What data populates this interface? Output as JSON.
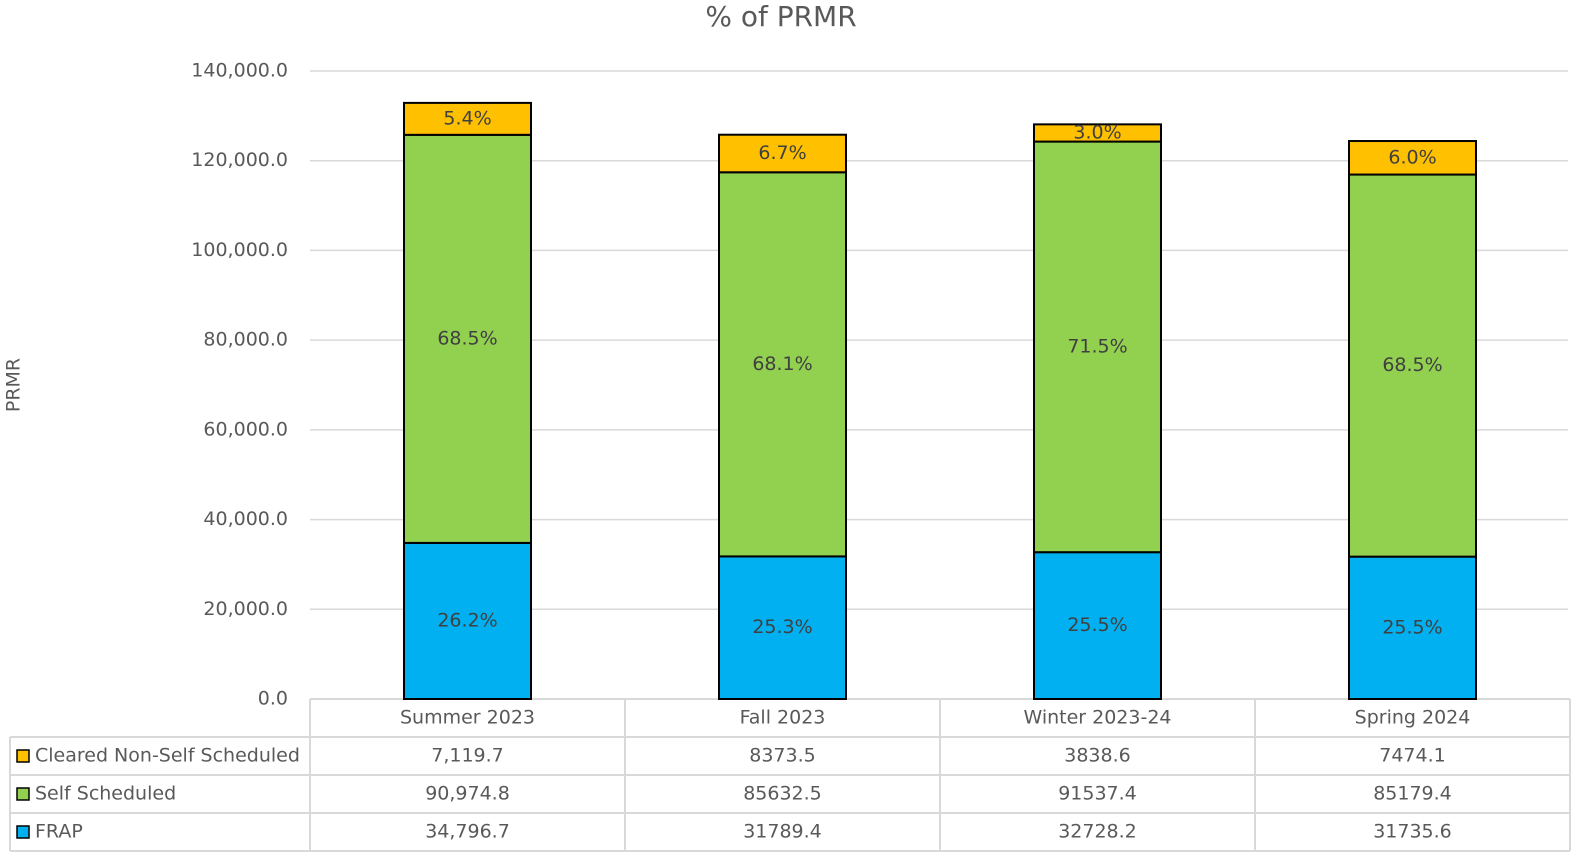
{
  "chart_data": {
    "type": "stacked_bar",
    "title": "% of PRMR",
    "y_label": "PRMR",
    "categories": [
      "Summer 2023",
      "Fall 2023",
      "Winter 2023-24",
      "Spring 2024"
    ],
    "series": [
      {
        "name": "FRAP",
        "color": "#00b0f0",
        "values": [
          34796.7,
          31789.4,
          32728.2,
          31735.6
        ],
        "value_labels": [
          "34,796.7",
          "31789.4",
          "32728.2",
          "31735.6"
        ],
        "percent_labels": [
          "26.2%",
          "25.3%",
          "25.5%",
          "25.5%"
        ]
      },
      {
        "name": "Self Scheduled",
        "color": "#92d050",
        "values": [
          90974.8,
          85632.5,
          91537.4,
          85179.4
        ],
        "value_labels": [
          "90,974.8",
          "85632.5",
          "91537.4",
          "85179.4"
        ],
        "percent_labels": [
          "68.5%",
          "68.1%",
          "71.5%",
          "68.5%"
        ]
      },
      {
        "name": "Cleared Non-Self Scheduled",
        "color": "#ffc000",
        "values": [
          7119.7,
          8373.5,
          3838.6,
          7474.1
        ],
        "value_labels": [
          "7,119.7",
          "8373.5",
          "3838.6",
          "7474.1"
        ],
        "percent_labels": [
          "5.4%",
          "6.7%",
          "3.0%",
          "6.0%"
        ]
      }
    ],
    "ylim": [
      0,
      140000
    ],
    "yticks": [
      {
        "value": 0,
        "label": "0.0"
      },
      {
        "value": 20000,
        "label": "20,000.0"
      },
      {
        "value": 40000,
        "label": "40,000.0"
      },
      {
        "value": 60000,
        "label": "60,000.0"
      },
      {
        "value": 80000,
        "label": "80,000.0"
      },
      {
        "value": 100000,
        "label": "100,000.0"
      },
      {
        "value": 120000,
        "label": "120,000.0"
      },
      {
        "value": 140000,
        "label": "140,000.0"
      }
    ],
    "grid": true
  }
}
